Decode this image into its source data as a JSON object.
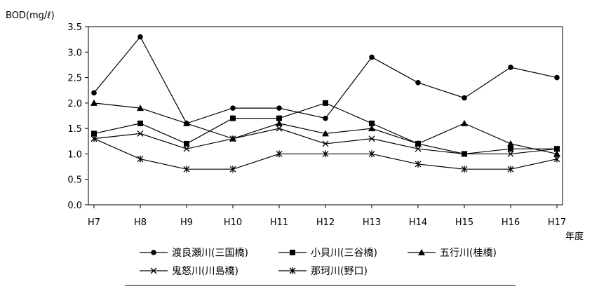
{
  "chart_data": {
    "type": "line",
    "title": "",
    "ylabel": "BOD(mg/ℓ)",
    "xlabel": "年度",
    "ylim": [
      0,
      3.5
    ],
    "yticks": [
      "0.0",
      "0.5",
      "1.0",
      "1.5",
      "2.0",
      "2.5",
      "3.0",
      "3.5"
    ],
    "categories": [
      "H7",
      "H8",
      "H9",
      "H10",
      "H11",
      "H12",
      "H13",
      "H14",
      "H15",
      "H16",
      "H17"
    ],
    "grid": false,
    "legend": "bottom",
    "series": [
      {
        "name": "渡良瀬川(三国橋)",
        "marker": "circle",
        "values": [
          2.2,
          3.3,
          1.6,
          1.9,
          1.9,
          1.7,
          2.9,
          2.4,
          2.1,
          2.7,
          2.5
        ]
      },
      {
        "name": "小貝川(三谷橋)",
        "marker": "square",
        "values": [
          1.4,
          1.6,
          1.2,
          1.7,
          1.7,
          2.0,
          1.6,
          1.2,
          1.0,
          1.1,
          1.1
        ]
      },
      {
        "name": "五行川(桂橋)",
        "marker": "triangle",
        "values": [
          2.0,
          1.9,
          1.6,
          1.3,
          1.6,
          1.4,
          1.5,
          1.2,
          1.6,
          1.2,
          1.0
        ]
      },
      {
        "name": "鬼怒川(川島橋)",
        "marker": "x",
        "values": [
          1.3,
          1.4,
          1.1,
          1.3,
          1.5,
          1.2,
          1.3,
          1.1,
          1.0,
          1.0,
          1.1
        ]
      },
      {
        "name": "那珂川(野口)",
        "marker": "star",
        "values": [
          1.3,
          0.9,
          0.7,
          0.7,
          1.0,
          1.0,
          1.0,
          0.8,
          0.7,
          0.7,
          0.9
        ]
      }
    ]
  }
}
